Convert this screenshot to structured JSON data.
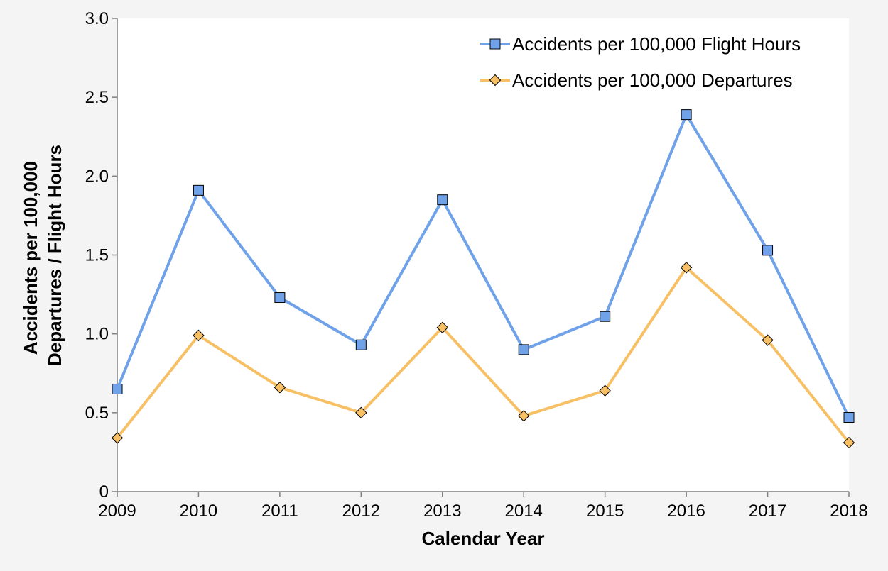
{
  "chart_data": {
    "type": "line",
    "xlabel": "Calendar Year",
    "ylabel_lines": [
      "Accidents per 100,000",
      "Departures / Flight Hours"
    ],
    "categories": [
      "2009",
      "2010",
      "2011",
      "2012",
      "2013",
      "2014",
      "2015",
      "2016",
      "2017",
      "2018"
    ],
    "ylim": [
      0,
      3.0
    ],
    "yticks": [
      "0",
      "0.5",
      "1.0",
      "1.5",
      "2.0",
      "2.5",
      "3.0"
    ],
    "ytick_values": [
      0,
      0.5,
      1.0,
      1.5,
      2.0,
      2.5,
      3.0
    ],
    "grid": false,
    "legend_position": "top-right",
    "series": [
      {
        "name": "Accidents per 100,000 Flight Hours",
        "marker": "square",
        "color": "#6fa2e8",
        "marker_color": "#6fa2e8",
        "values": [
          0.65,
          1.91,
          1.23,
          0.93,
          1.85,
          0.9,
          1.11,
          2.39,
          1.53,
          0.47
        ]
      },
      {
        "name": "Accidents per 100,000 Departures",
        "marker": "diamond",
        "color": "#f7c065",
        "marker_color": "#f7c065",
        "values": [
          0.34,
          0.99,
          0.66,
          0.5,
          1.04,
          0.48,
          0.64,
          1.42,
          0.96,
          0.31
        ]
      }
    ]
  }
}
